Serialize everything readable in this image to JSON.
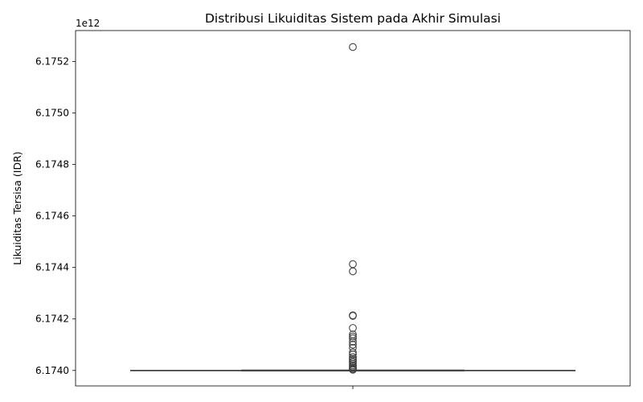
{
  "chart_data": {
    "type": "box",
    "title": "Distribusi Likuiditas Sistem pada Akhir Simulasi",
    "xlabel": "",
    "ylabel": "Likuiditas Tersisa (IDR)",
    "offset_text": "1e12",
    "ylim": [
      6.17394,
      6.17532
    ],
    "yticks": [
      6.174,
      6.1742,
      6.1744,
      6.1746,
      6.1748,
      6.175,
      6.1752
    ],
    "ytick_labels": [
      "6.1740",
      "6.1742",
      "6.1744",
      "6.1746",
      "6.1748",
      "6.1750",
      "6.1752"
    ],
    "box": {
      "q1": 6.174,
      "median": 6.174,
      "q3": 6.174,
      "whisker_low": 6.174,
      "whisker_high": 6.174
    },
    "outliers": [
      6.175256,
      6.174413,
      6.174385,
      6.174214,
      6.174212,
      6.174165,
      6.17414,
      6.174132,
      6.174125,
      6.174112,
      6.1741,
      6.174088,
      6.17407,
      6.174062,
      6.174052,
      6.174045,
      6.17404,
      6.174033,
      6.174026,
      6.17402,
      6.174015,
      6.17401,
      6.174006,
      6.174003
    ],
    "colors": {
      "box_line": "#3f3f3f",
      "outlier_edge": "#3f3f3f",
      "axes": "#000000"
    }
  }
}
